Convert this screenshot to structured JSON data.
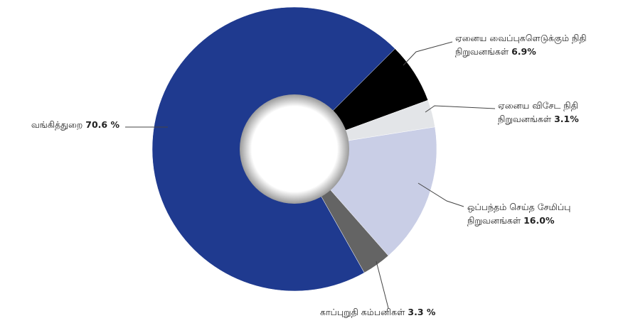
{
  "chart_data": {
    "type": "pie",
    "categories": [
      [
        "ஏனைய வைப்புகளெடுக்கும் நிதி",
        "நிறுவனங்கள்"
      ],
      [
        "ஏனைய விசேட நிதி",
        "நிறுவனங்கள்"
      ],
      [
        "ஒப்பந்தம் செய்த சேமிப்பு",
        "நிறுவனங்கள்"
      ],
      [
        "காப்புறுதி கம்பனிகள்"
      ],
      [
        "வங்கித்துறை"
      ]
    ],
    "values": [
      6.9,
      3.1,
      16.0,
      3.3,
      70.6
    ],
    "value_labels": [
      "6.9%",
      "3.1%",
      "16.0%",
      "3.3 %",
      "70.6 %"
    ],
    "colors": [
      "#000000",
      "#e3e5e8",
      "#c9cee6",
      "#646464",
      "#1f3a8f"
    ]
  }
}
